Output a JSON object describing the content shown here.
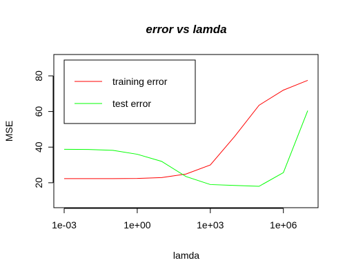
{
  "chart_data": {
    "type": "line",
    "title": "error vs lamda",
    "xlabel": "lamda",
    "ylabel": "MSE",
    "x_scale": "log10",
    "xlim": [
      0.001,
      10000000
    ],
    "ylim": [
      6,
      92
    ],
    "x_ticks": [
      {
        "value": 0.001,
        "label": "1e-03"
      },
      {
        "value": 1,
        "label": "1e+00"
      },
      {
        "value": 1000,
        "label": "1e+03"
      },
      {
        "value": 1000000,
        "label": "1e+06"
      }
    ],
    "y_ticks": [
      {
        "value": 20,
        "label": "20"
      },
      {
        "value": 40,
        "label": "40"
      },
      {
        "value": 60,
        "label": "60"
      },
      {
        "value": 80,
        "label": "80"
      }
    ],
    "grid": false,
    "legend_position": "top-left",
    "series": [
      {
        "name": "training error",
        "color": "#ff0000",
        "x": [
          0.001,
          0.01,
          0.1,
          1,
          10,
          100,
          1000,
          10000,
          100000,
          1000000,
          10000000
        ],
        "y": [
          22.3,
          22.3,
          22.3,
          22.4,
          22.9,
          24.9,
          30.0,
          46.0,
          63.5,
          72.0,
          77.5
        ]
      },
      {
        "name": "test error",
        "color": "#00ff00",
        "x": [
          0.001,
          0.01,
          0.1,
          1,
          10,
          100,
          1000,
          10000,
          100000,
          1000000,
          10000000
        ],
        "y": [
          38.8,
          38.7,
          38.2,
          36.0,
          32.0,
          23.5,
          19.0,
          18.5,
          18.0,
          25.7,
          60.5
        ]
      }
    ]
  }
}
